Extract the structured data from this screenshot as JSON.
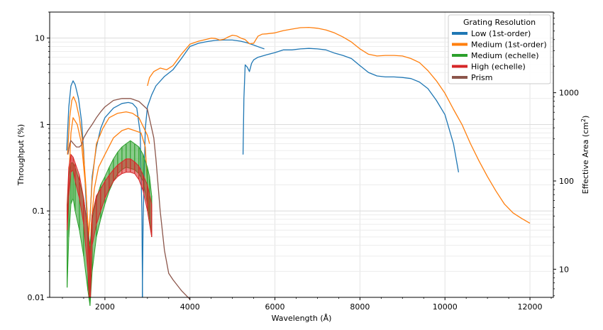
{
  "chart_data": {
    "type": "line",
    "xlabel": "Wavelength (Å)",
    "ylabel": "Throughput (%)",
    "y2label_main": "Effective Area (cm",
    "y2label_sup": "2",
    "y2label_close": ")",
    "xlim": [
      700,
      12550
    ],
    "ylim": [
      0.01,
      20
    ],
    "yscale": "log",
    "y2lim": [
      4.8,
      8200
    ],
    "y2scale": "log",
    "grid": true,
    "legend_position": "top-right",
    "legend_title": "Grating Resolution",
    "x_ticks": [
      2000,
      4000,
      6000,
      8000,
      10000,
      12000
    ],
    "x_tick_labels": [
      "2000",
      "4000",
      "6000",
      "8000",
      "10000",
      "12000"
    ],
    "y_ticks": [
      0.01,
      0.1,
      1,
      10
    ],
    "y_tick_labels": [
      "0.01",
      "0.1",
      "1",
      "10"
    ],
    "y2_ticks": [
      10,
      100,
      1000
    ],
    "y2_tick_labels": [
      "10",
      "100",
      "1000"
    ],
    "series": [
      {
        "name": "Low (1st-order)",
        "color": "#1f77b4",
        "segments": [
          [
            [
              1100,
              0.5
            ],
            [
              1150,
              1.6
            ],
            [
              1200,
              2.8
            ],
            [
              1250,
              3.2
            ],
            [
              1300,
              2.9
            ],
            [
              1380,
              2.0
            ],
            [
              1450,
              1.1
            ],
            [
              1500,
              0.5
            ],
            [
              1550,
              0.15
            ],
            [
              1600,
              0.045
            ],
            [
              1650,
              0.08
            ],
            [
              1700,
              0.25
            ],
            [
              1800,
              0.55
            ],
            [
              1900,
              0.9
            ],
            [
              2000,
              1.2
            ],
            [
              2200,
              1.55
            ],
            [
              2400,
              1.75
            ],
            [
              2550,
              1.8
            ],
            [
              2650,
              1.75
            ],
            [
              2750,
              1.55
            ],
            [
              2830,
              0.8
            ],
            [
              2870,
              0.1
            ],
            [
              2885,
              0.01
            ]
          ],
          [
            [
              2880,
              0.01
            ],
            [
              2900,
              0.08
            ],
            [
              2950,
              0.9
            ],
            [
              3000,
              1.6
            ],
            [
              3100,
              2.2
            ],
            [
              3200,
              2.8
            ],
            [
              3400,
              3.6
            ],
            [
              3600,
              4.3
            ],
            [
              3800,
              5.8
            ],
            [
              4000,
              8.0
            ],
            [
              4200,
              8.7
            ],
            [
              4400,
              9.1
            ],
            [
              4600,
              9.4
            ],
            [
              4800,
              9.5
            ],
            [
              5000,
              9.5
            ],
            [
              5200,
              9.2
            ],
            [
              5350,
              8.8
            ],
            [
              5500,
              8.3
            ],
            [
              5650,
              7.8
            ],
            [
              5750,
              7.5
            ]
          ],
          [
            [
              5250,
              0.45
            ],
            [
              5270,
              2.0
            ],
            [
              5300,
              4.9
            ],
            [
              5350,
              4.6
            ],
            [
              5400,
              4.1
            ],
            [
              5450,
              5.1
            ],
            [
              5500,
              5.6
            ],
            [
              5600,
              6.0
            ],
            [
              5800,
              6.4
            ],
            [
              6000,
              6.8
            ],
            [
              6200,
              7.3
            ],
            [
              6400,
              7.3
            ],
            [
              6600,
              7.5
            ],
            [
              6800,
              7.6
            ],
            [
              7000,
              7.5
            ],
            [
              7200,
              7.3
            ],
            [
              7400,
              6.7
            ],
            [
              7600,
              6.3
            ],
            [
              7800,
              5.8
            ],
            [
              8000,
              4.8
            ],
            [
              8200,
              4.0
            ],
            [
              8400,
              3.65
            ],
            [
              8600,
              3.55
            ],
            [
              8800,
              3.55
            ],
            [
              9000,
              3.5
            ],
            [
              9200,
              3.4
            ],
            [
              9400,
              3.1
            ],
            [
              9600,
              2.6
            ],
            [
              9800,
              1.9
            ],
            [
              10000,
              1.3
            ],
            [
              10200,
              0.6
            ],
            [
              10320,
              0.28
            ]
          ]
        ]
      },
      {
        "name": "Medium (1st-order)",
        "color": "#ff7f0e",
        "segments": [
          [
            [
              1120,
              0.45
            ],
            [
              1170,
              1.2
            ],
            [
              1220,
              1.9
            ],
            [
              1260,
              2.1
            ],
            [
              1320,
              1.8
            ],
            [
              1400,
              1.2
            ],
            [
              1480,
              0.6
            ],
            [
              1550,
              0.2
            ],
            [
              1600,
              0.06
            ],
            [
              1640,
              0.02
            ],
            [
              1680,
              0.07
            ],
            [
              1750,
              0.18
            ],
            [
              1850,
              0.32
            ],
            [
              2000,
              0.45
            ],
            [
              2200,
              0.7
            ],
            [
              2400,
              0.85
            ],
            [
              2550,
              0.9
            ],
            [
              2700,
              0.85
            ],
            [
              2850,
              0.8
            ],
            [
              2950,
              0.55
            ],
            [
              3050,
              0.08
            ]
          ],
          [
            [
              1160,
              0.3
            ],
            [
              1200,
              0.8
            ],
            [
              1250,
              1.2
            ],
            [
              1350,
              1.0
            ],
            [
              1450,
              0.6
            ],
            [
              1550,
              0.18
            ],
            [
              1620,
              0.05
            ],
            [
              1700,
              0.22
            ],
            [
              1800,
              0.6
            ],
            [
              1950,
              0.9
            ],
            [
              2100,
              1.2
            ],
            [
              2300,
              1.35
            ],
            [
              2500,
              1.4
            ],
            [
              2650,
              1.35
            ],
            [
              2800,
              1.2
            ],
            [
              2900,
              0.95
            ],
            [
              3000,
              0.75
            ],
            [
              3050,
              0.6
            ]
          ],
          [
            [
              3000,
              2.8
            ],
            [
              3050,
              3.5
            ],
            [
              3150,
              4.1
            ],
            [
              3300,
              4.5
            ],
            [
              3450,
              4.3
            ],
            [
              3600,
              4.8
            ],
            [
              3800,
              6.5
            ],
            [
              4000,
              8.5
            ],
            [
              4200,
              9.2
            ],
            [
              4400,
              9.7
            ],
            [
              4500,
              10.0
            ],
            [
              4600,
              9.9
            ],
            [
              4700,
              9.5
            ],
            [
              4800,
              9.7
            ],
            [
              4900,
              10.3
            ],
            [
              5000,
              10.8
            ],
            [
              5100,
              10.6
            ],
            [
              5200,
              10.0
            ],
            [
              5300,
              9.6
            ],
            [
              5400,
              8.6
            ],
            [
              5500,
              8.7
            ],
            [
              5600,
              10.5
            ],
            [
              5700,
              11.1
            ],
            [
              5800,
              11.2
            ],
            [
              6000,
              11.5
            ],
            [
              6200,
              12.2
            ],
            [
              6400,
              12.7
            ],
            [
              6600,
              13.2
            ],
            [
              6800,
              13.3
            ],
            [
              7000,
              13.0
            ],
            [
              7200,
              12.4
            ],
            [
              7400,
              11.5
            ],
            [
              7600,
              10.3
            ],
            [
              7800,
              9.0
            ],
            [
              8000,
              7.5
            ],
            [
              8200,
              6.5
            ],
            [
              8400,
              6.2
            ],
            [
              8600,
              6.3
            ],
            [
              8800,
              6.3
            ],
            [
              9000,
              6.2
            ],
            [
              9200,
              5.8
            ],
            [
              9400,
              5.2
            ],
            [
              9600,
              4.2
            ],
            [
              9800,
              3.2
            ],
            [
              10000,
              2.3
            ],
            [
              10200,
              1.5
            ],
            [
              10400,
              1.0
            ],
            [
              10600,
              0.6
            ],
            [
              10800,
              0.38
            ],
            [
              11000,
              0.25
            ],
            [
              11200,
              0.17
            ],
            [
              11400,
              0.12
            ],
            [
              11600,
              0.095
            ],
            [
              11800,
              0.082
            ],
            [
              12000,
              0.072
            ]
          ]
        ]
      },
      {
        "name": "Medium (echelle)",
        "color": "#2ca02c",
        "band": [
          [
            1110,
            0.013,
            0.08
          ],
          [
            1150,
            0.05,
            0.25
          ],
          [
            1200,
            0.12,
            0.36
          ],
          [
            1250,
            0.14,
            0.36
          ],
          [
            1300,
            0.1,
            0.32
          ],
          [
            1400,
            0.06,
            0.22
          ],
          [
            1500,
            0.03,
            0.14
          ],
          [
            1600,
            0.012,
            0.06
          ],
          [
            1650,
            0.008,
            0.04
          ],
          [
            1700,
            0.02,
            0.08
          ],
          [
            1800,
            0.05,
            0.14
          ],
          [
            1900,
            0.08,
            0.2
          ],
          [
            2000,
            0.12,
            0.25
          ],
          [
            2100,
            0.17,
            0.32
          ],
          [
            2200,
            0.22,
            0.4
          ],
          [
            2300,
            0.27,
            0.48
          ],
          [
            2400,
            0.3,
            0.55
          ],
          [
            2500,
            0.32,
            0.6
          ],
          [
            2600,
            0.31,
            0.65
          ],
          [
            2700,
            0.3,
            0.6
          ],
          [
            2800,
            0.27,
            0.55
          ],
          [
            2900,
            0.22,
            0.45
          ],
          [
            3000,
            0.12,
            0.32
          ],
          [
            3050,
            0.08,
            0.25
          ],
          [
            3100,
            0.05,
            0.15
          ]
        ]
      },
      {
        "name": "High (echelle)",
        "color": "#d62728",
        "band": [
          [
            1110,
            0.06,
            0.12
          ],
          [
            1150,
            0.15,
            0.32
          ],
          [
            1200,
            0.28,
            0.45
          ],
          [
            1250,
            0.3,
            0.42
          ],
          [
            1300,
            0.22,
            0.36
          ],
          [
            1400,
            0.14,
            0.26
          ],
          [
            1500,
            0.07,
            0.14
          ],
          [
            1600,
            0.02,
            0.06
          ],
          [
            1630,
            0.01,
            0.04
          ],
          [
            1660,
            0.01,
            0.03
          ],
          [
            1700,
            0.04,
            0.09
          ],
          [
            1800,
            0.07,
            0.15
          ],
          [
            1900,
            0.1,
            0.18
          ],
          [
            2000,
            0.14,
            0.22
          ],
          [
            2100,
            0.18,
            0.26
          ],
          [
            2200,
            0.22,
            0.3
          ],
          [
            2300,
            0.25,
            0.34
          ],
          [
            2400,
            0.27,
            0.37
          ],
          [
            2500,
            0.28,
            0.4
          ],
          [
            2600,
            0.28,
            0.4
          ],
          [
            2700,
            0.27,
            0.37
          ],
          [
            2800,
            0.23,
            0.33
          ],
          [
            2900,
            0.17,
            0.26
          ],
          [
            3000,
            0.1,
            0.2
          ],
          [
            3100,
            0.05,
            0.12
          ]
        ]
      },
      {
        "name": "Prism",
        "color": "#8c564b",
        "segments": [
          [
            [
              1130,
              0.45
            ],
            [
              1170,
              0.6
            ],
            [
              1200,
              0.65
            ],
            [
              1260,
              0.6
            ],
            [
              1330,
              0.55
            ],
            [
              1400,
              0.55
            ],
            [
              1450,
              0.58
            ],
            [
              1500,
              0.7
            ],
            [
              1600,
              0.85
            ],
            [
              1700,
              1.0
            ],
            [
              1800,
              1.2
            ],
            [
              1900,
              1.4
            ],
            [
              2000,
              1.6
            ],
            [
              2200,
              1.9
            ],
            [
              2400,
              2.0
            ],
            [
              2600,
              2.0
            ],
            [
              2800,
              1.85
            ],
            [
              3000,
              1.5
            ],
            [
              3150,
              0.7
            ],
            [
              3200,
              0.4
            ],
            [
              3300,
              0.1
            ],
            [
              3400,
              0.035
            ],
            [
              3500,
              0.019
            ],
            [
              3600,
              0.016
            ],
            [
              3800,
              0.012
            ],
            [
              4000,
              0.0095
            ]
          ]
        ]
      }
    ]
  }
}
